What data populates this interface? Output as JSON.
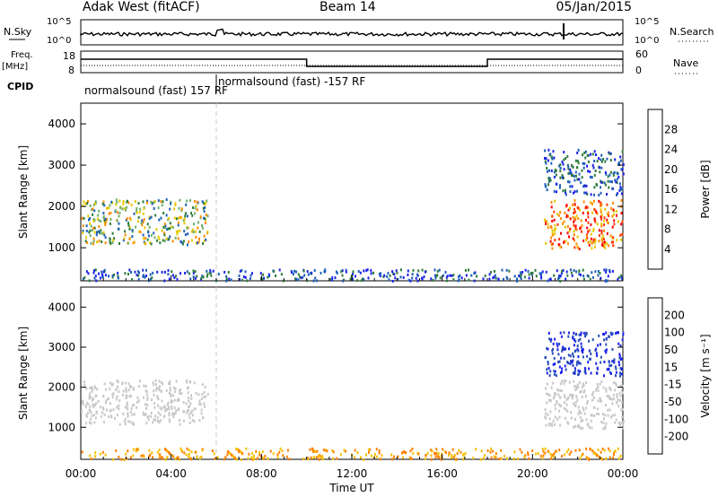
{
  "header": {
    "station": "Adak West (fitACF)",
    "beam": "Beam 14",
    "date": "05/Jan/2015"
  },
  "aux": {
    "nsky_label": "N.Sky",
    "nsky_ticks": [
      "10^5",
      "10^0"
    ],
    "nsearch_label": "N.Search",
    "nsearch_ticks": [
      "10^5",
      "10^0"
    ],
    "freq_label": "Freq.",
    "freq_unit": "[MHz]",
    "freq_ticks": [
      "18",
      "8"
    ],
    "nave_label": "Nave",
    "nave_ticks": [
      "60",
      "0"
    ],
    "cpid_label": "CPID",
    "cpid_segments": [
      {
        "text": "normalsound (fast) 157 RF",
        "start_hour": 0
      },
      {
        "text": "normalsound (fast) -157 RF",
        "start_hour": 6
      }
    ]
  },
  "chart_data": [
    {
      "type": "heatmap",
      "name": "power",
      "ylabel": "Slant Range [km]",
      "ylim": [
        200,
        4500
      ],
      "yticks": [
        1000,
        2000,
        3000,
        4000
      ],
      "xlim": [
        0,
        24
      ],
      "colorbar": {
        "label": "Power [dB]",
        "ticks": [
          4,
          8,
          12,
          16,
          20,
          24,
          28
        ],
        "colors": [
          "#1c22e8",
          "#1f5fb8",
          "#2e7d3a",
          "#6fb06a",
          "#e6c800",
          "#ff8c00",
          "#ff3b00",
          "#ff0000"
        ]
      },
      "regions": [
        {
          "t0": 0.0,
          "t1": 5.6,
          "r0": 1100,
          "r1": 2200,
          "level": "mid"
        },
        {
          "t0": 20.5,
          "t1": 24.0,
          "r0": 1000,
          "r1": 2200,
          "level": "high"
        },
        {
          "t0": 20.5,
          "t1": 24.0,
          "r0": 2300,
          "r1": 3400,
          "level": "low"
        },
        {
          "t0": 0.0,
          "t1": 24.0,
          "r0": 220,
          "r1": 500,
          "level": "low"
        }
      ]
    },
    {
      "type": "heatmap",
      "name": "velocity",
      "ylabel": "Slant Range [km]",
      "ylim": [
        200,
        4500
      ],
      "yticks": [
        1000,
        2000,
        3000,
        4000
      ],
      "xlim": [
        0,
        24
      ],
      "xticks": [
        "00:00",
        "04:00",
        "08:00",
        "12:00",
        "16:00",
        "20:00",
        "00:00"
      ],
      "xlabel": "Time UT",
      "colorbar": {
        "label": "Velocity [m s⁻¹]",
        "ticks": [
          "200",
          "100",
          "50",
          "15",
          "-15",
          "-50",
          "-100",
          "-200"
        ],
        "colors": [
          "#1c22e8",
          "#2a4fb8",
          "#2e7d3a",
          "#77c646",
          "#c8c8c8",
          "#f5c000",
          "#ff8000",
          "#ff3b00",
          "#ff0000"
        ]
      },
      "regions": [
        {
          "t0": 0.0,
          "t1": 5.6,
          "r0": 1100,
          "r1": 2200,
          "level": "ground"
        },
        {
          "t0": 20.5,
          "t1": 24.0,
          "r0": 1000,
          "r1": 2200,
          "level": "ground"
        },
        {
          "t0": 20.5,
          "t1": 24.0,
          "r0": 2300,
          "r1": 3400,
          "level": "positive"
        },
        {
          "t0": 0.0,
          "t1": 24.0,
          "r0": 220,
          "r1": 500,
          "level": "negative"
        }
      ]
    }
  ]
}
